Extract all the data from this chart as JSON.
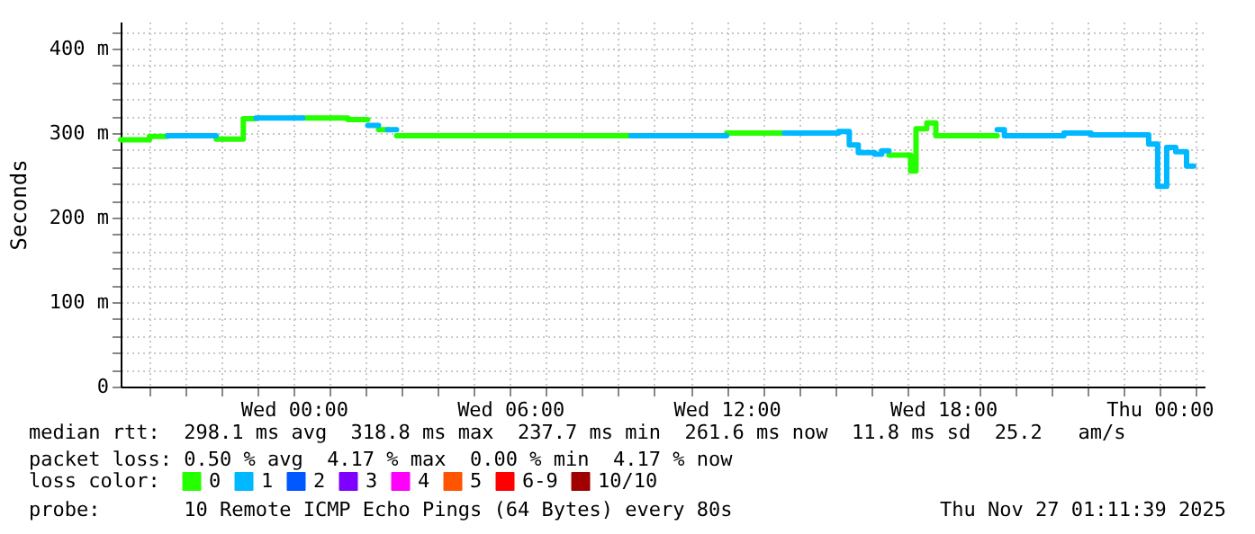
{
  "chart_data": {
    "type": "line",
    "ylabel": "Seconds",
    "legend_title": "loss color:",
    "legend": "bottom",
    "grid": true,
    "annotations": [
      "median rtt:  298.1 ms avg  318.8 ms max  237.7 ms min  261.6 ms now  11.8 ms sd  25.2   am/s",
      "packet loss: 0.50 % avg  4.17 % max  0.00 % min  4.17 % now",
      "probe:       10 Remote ICMP Echo Pings (64 Bytes) every 80s",
      "Thu Nov 27 01:11:39 2025"
    ],
    "series": [
      {
        "name": "0",
        "color": "#26ff00",
        "x": [
          "2025-11-25T19:12",
          "2025-11-25T20:00",
          "2025-11-25T20:00",
          "2025-11-25T20:30",
          null,
          "2025-11-25T21:51",
          "2025-11-25T22:36",
          "2025-11-25T22:36",
          "2025-11-25T22:57",
          null,
          "2025-11-26T00:15",
          "2025-11-26T01:30",
          "2025-11-26T01:30",
          "2025-11-26T02:03",
          null,
          "2025-11-26T02:21",
          "2025-11-26T02:36",
          null,
          "2025-11-26T02:51",
          "2025-11-26T09:21",
          null,
          "2025-11-26T12:00",
          "2025-11-26T13:36",
          null,
          "2025-11-26T16:30",
          "2025-11-26T17:06",
          "2025-11-26T17:06",
          "2025-11-26T17:15",
          "2025-11-26T17:15",
          "2025-11-26T17:33",
          "2025-11-26T17:33",
          "2025-11-26T17:48",
          "2025-11-26T17:48",
          "2025-11-26T19:30"
        ],
        "values": [
          292,
          292,
          296,
          296,
          null,
          293,
          293,
          317,
          317,
          null,
          318,
          318,
          316,
          316,
          null,
          304,
          304,
          null,
          297,
          297,
          null,
          300,
          300,
          null,
          274,
          274,
          255,
          255,
          305,
          305,
          312,
          312,
          297,
          297
        ]
      },
      {
        "name": "1",
        "color": "#00b8ff",
        "x": [
          "2025-11-25T20:30",
          "2025-11-25T21:51",
          null,
          "2025-11-25T22:57",
          "2025-11-26T00:15",
          null,
          "2025-11-26T02:03",
          "2025-11-26T02:21",
          null,
          "2025-11-26T02:36",
          "2025-11-26T02:51",
          null,
          "2025-11-26T09:21",
          "2025-11-26T12:00",
          null,
          "2025-11-26T13:36",
          "2025-11-26T15:06",
          "2025-11-26T15:06",
          "2025-11-26T15:24",
          "2025-11-26T15:24",
          "2025-11-26T15:39",
          "2025-11-26T15:39",
          "2025-11-26T16:06",
          "2025-11-26T16:06",
          "2025-11-26T16:18",
          "2025-11-26T16:18",
          "2025-11-26T16:30",
          null,
          "2025-11-26T19:30",
          "2025-11-26T19:42",
          "2025-11-26T19:42",
          "2025-11-26T21:21",
          "2025-11-26T21:21",
          "2025-11-26T22:06",
          "2025-11-26T22:06",
          "2025-11-26T23:42",
          "2025-11-26T23:42",
          "2025-11-26T23:57",
          "2025-11-26T23:57",
          "2025-11-27T00:12",
          "2025-11-27T00:12",
          "2025-11-27T00:27",
          "2025-11-27T00:27",
          "2025-11-27T00:45",
          "2025-11-27T00:45",
          "2025-11-27T00:57"
        ],
        "values": [
          297,
          297,
          null,
          318,
          318,
          null,
          309,
          309,
          null,
          304,
          304,
          null,
          297,
          297,
          null,
          300,
          300,
          302,
          302,
          286,
          286,
          277,
          277,
          275,
          275,
          279,
          279,
          null,
          304,
          304,
          297,
          297,
          300,
          300,
          298,
          298,
          287,
          287,
          237,
          237,
          283,
          283,
          278,
          278,
          261,
          261
        ]
      },
      {
        "name": "2",
        "color": "#0059ff"
      },
      {
        "name": "3",
        "color": "#7e00ff"
      },
      {
        "name": "4",
        "color": "#ff00ff"
      },
      {
        "name": "5",
        "color": "#ff5500"
      },
      {
        "name": "6-9",
        "color": "#ff0000"
      },
      {
        "name": "10/10",
        "color": "#a10000"
      }
    ],
    "xlim": [
      "2025-11-25T19:12",
      "2025-11-27T01:15"
    ],
    "xticks": [
      {
        "value": "2025-11-25T20:00",
        "label": null
      },
      {
        "value": "2025-11-25T21:00",
        "label": null
      },
      {
        "value": "2025-11-25T22:00",
        "label": null
      },
      {
        "value": "2025-11-25T23:00",
        "label": null
      },
      {
        "value": "2025-11-26T00:00",
        "label": "Wed 00:00"
      },
      {
        "value": "2025-11-26T01:00",
        "label": null
      },
      {
        "value": "2025-11-26T02:00",
        "label": null
      },
      {
        "value": "2025-11-26T03:00",
        "label": null
      },
      {
        "value": "2025-11-26T04:00",
        "label": null
      },
      {
        "value": "2025-11-26T05:00",
        "label": null
      },
      {
        "value": "2025-11-26T06:00",
        "label": "Wed 06:00"
      },
      {
        "value": "2025-11-26T07:00",
        "label": null
      },
      {
        "value": "2025-11-26T08:00",
        "label": null
      },
      {
        "value": "2025-11-26T09:00",
        "label": null
      },
      {
        "value": "2025-11-26T10:00",
        "label": null
      },
      {
        "value": "2025-11-26T11:00",
        "label": null
      },
      {
        "value": "2025-11-26T12:00",
        "label": "Wed 12:00"
      },
      {
        "value": "2025-11-26T13:00",
        "label": null
      },
      {
        "value": "2025-11-26T14:00",
        "label": null
      },
      {
        "value": "2025-11-26T15:00",
        "label": null
      },
      {
        "value": "2025-11-26T16:00",
        "label": null
      },
      {
        "value": "2025-11-26T17:00",
        "label": null
      },
      {
        "value": "2025-11-26T18:00",
        "label": "Wed 18:00"
      },
      {
        "value": "2025-11-26T19:00",
        "label": null
      },
      {
        "value": "2025-11-26T20:00",
        "label": null
      },
      {
        "value": "2025-11-26T21:00",
        "label": null
      },
      {
        "value": "2025-11-26T22:00",
        "label": null
      },
      {
        "value": "2025-11-26T23:00",
        "label": null
      },
      {
        "value": "2025-11-27T00:00",
        "label": "Thu 00:00"
      },
      {
        "value": "2025-11-27T01:00",
        "label": null
      }
    ],
    "ylim": [
      0,
      432
    ],
    "yticks": [
      0,
      {
        "value": 20,
        "label": null
      },
      {
        "value": 40,
        "label": null
      },
      {
        "value": 60,
        "label": null
      },
      {
        "value": 80,
        "label": null
      },
      {
        "value": 100,
        "label": "100 m"
      },
      {
        "value": 120,
        "label": null
      },
      {
        "value": 140,
        "label": null
      },
      {
        "value": 160,
        "label": null
      },
      {
        "value": 180,
        "label": null
      },
      {
        "value": 200,
        "label": "200 m"
      },
      {
        "value": 220,
        "label": null
      },
      {
        "value": 240,
        "label": null
      },
      {
        "value": 260,
        "label": null
      },
      {
        "value": 280,
        "label": null
      },
      {
        "value": 300,
        "label": "300 m"
      },
      {
        "value": 320,
        "label": null
      },
      {
        "value": 340,
        "label": null
      },
      {
        "value": 360,
        "label": null
      },
      {
        "value": 380,
        "label": null
      },
      {
        "value": 400,
        "label": "400 m"
      },
      {
        "value": 420,
        "label": null
      }
    ]
  }
}
